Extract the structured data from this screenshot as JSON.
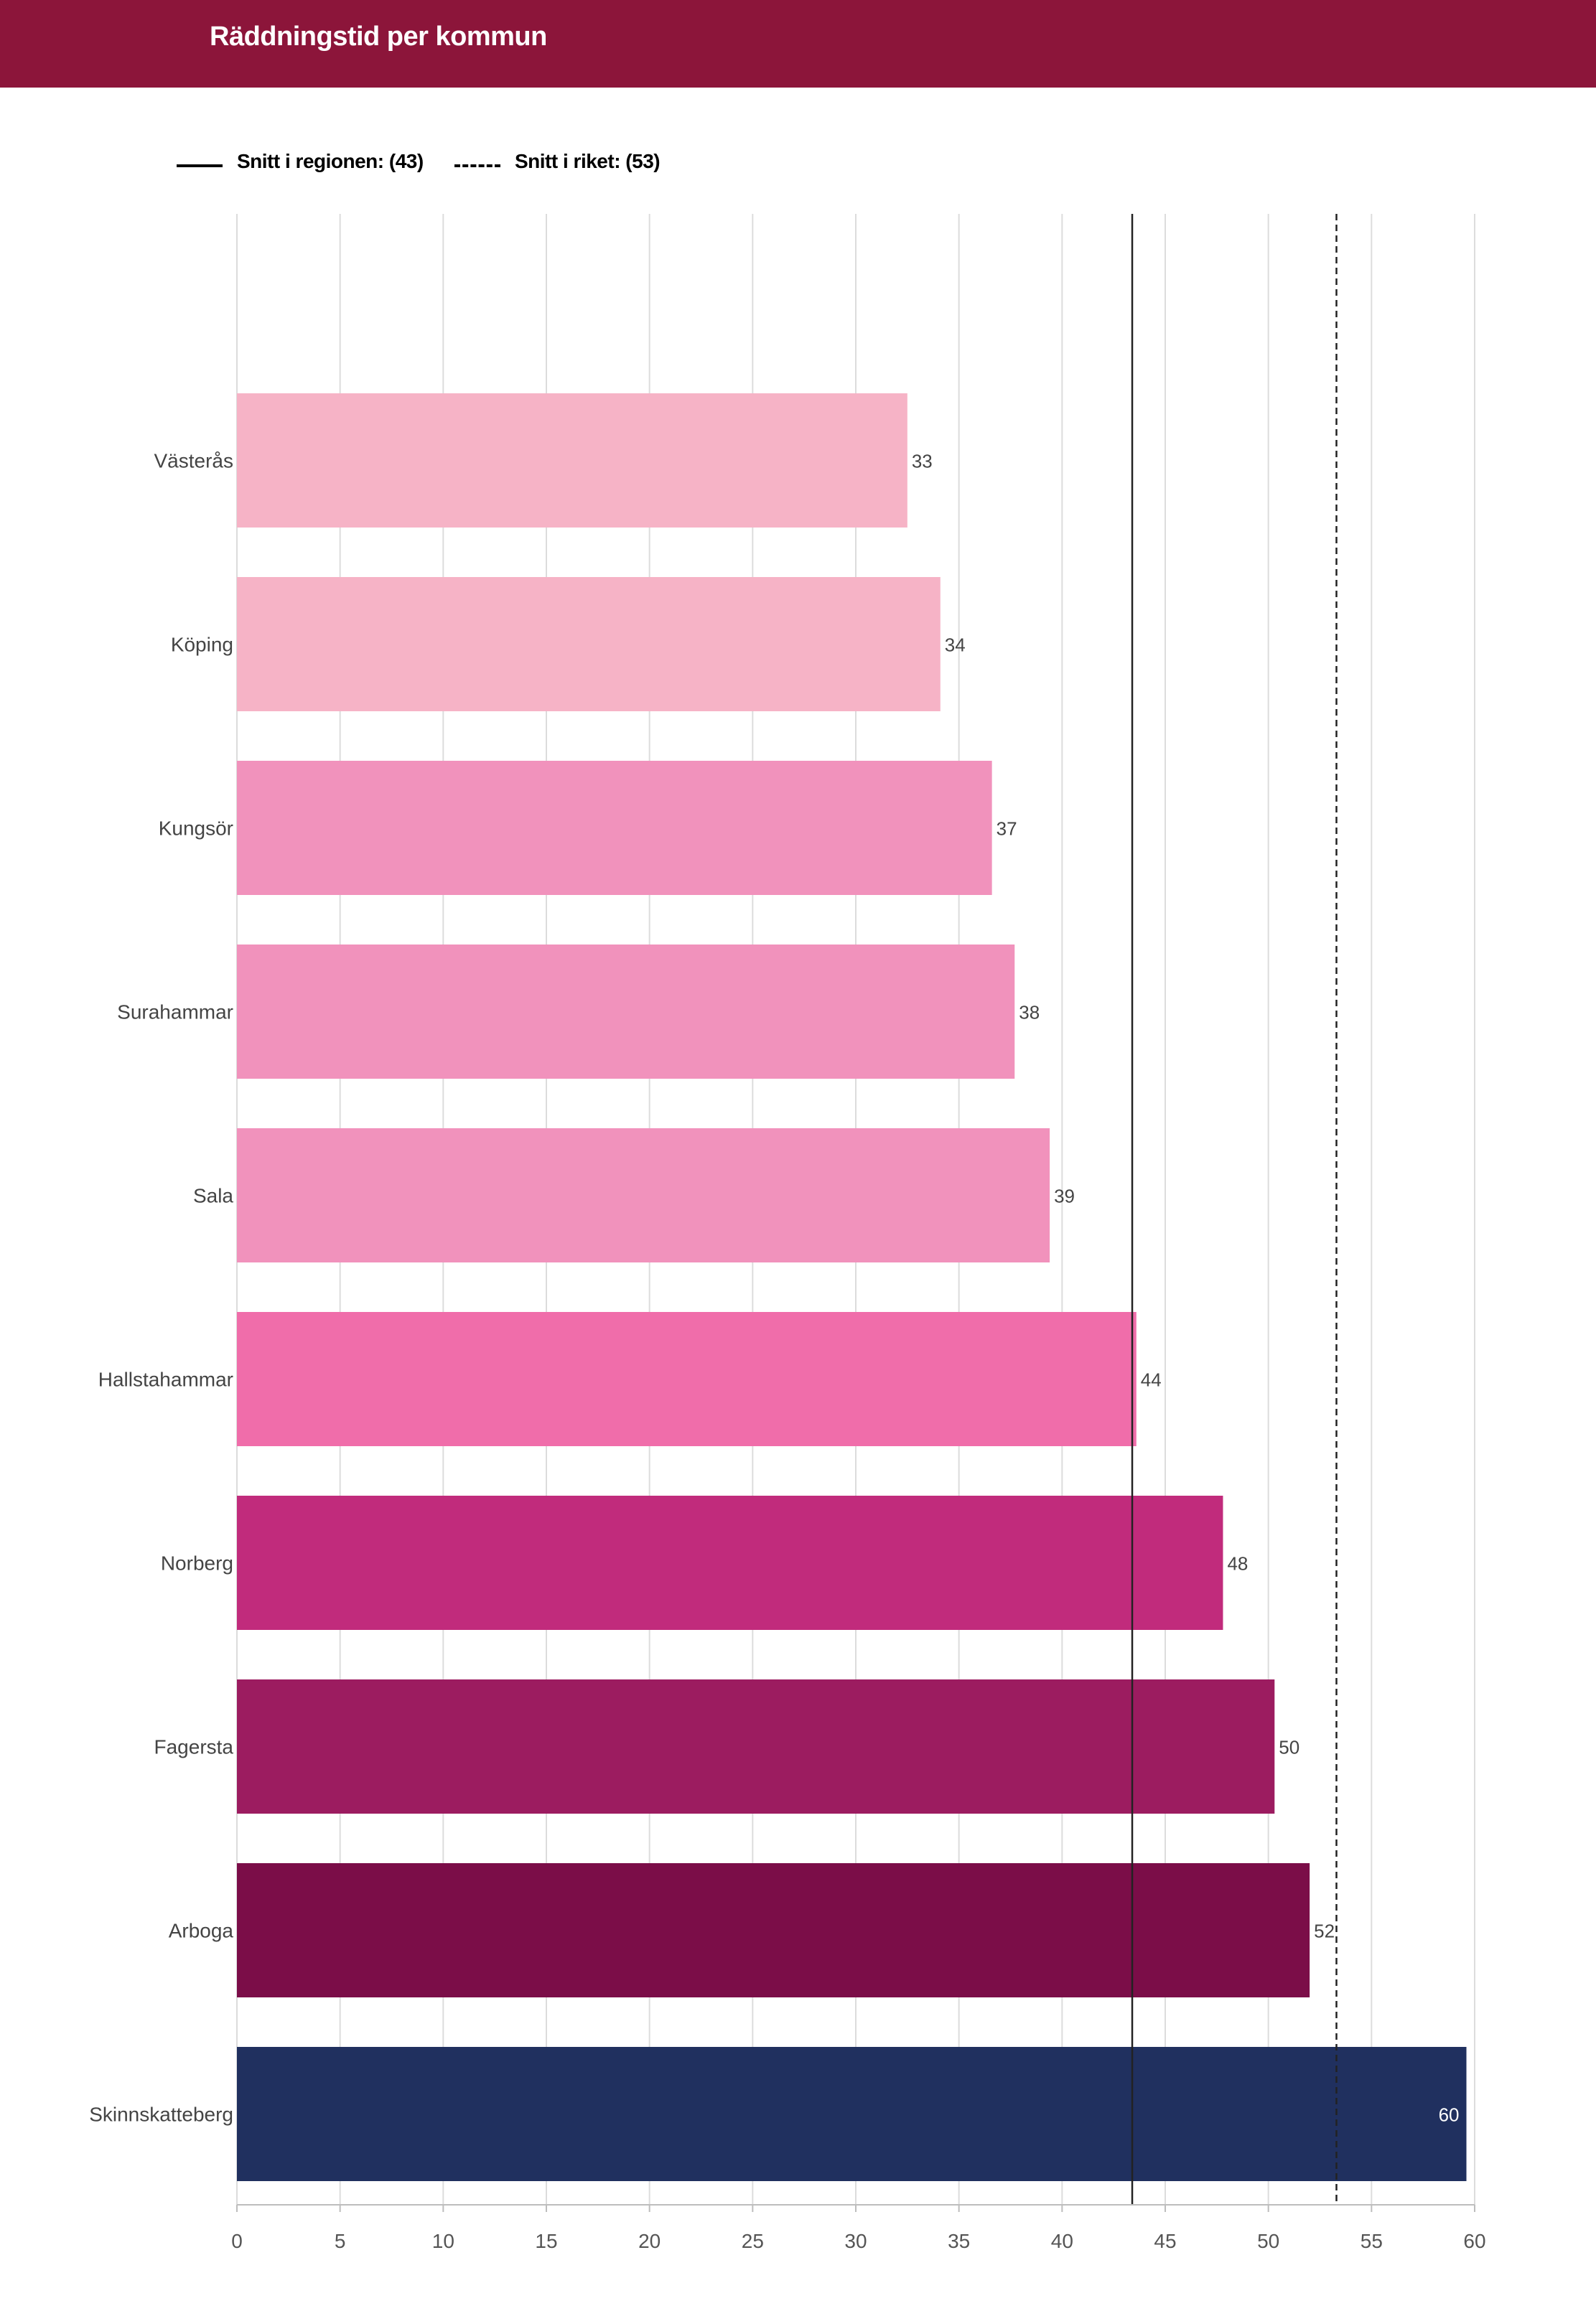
{
  "header": {
    "title": "Räddningstid per kommun"
  },
  "legend": {
    "region_label": "Snitt i regionen: (43)",
    "national_label": "Snitt i riket: (53)"
  },
  "colors": {
    "header_bg": "#8c153a",
    "light_pink": "#f6b3c6",
    "pink": "#f192bc",
    "hot_pink": "#f06daa",
    "magenta": "#c12b7c",
    "dark_magenta": "#9c1c60",
    "plum": "#7b0d48",
    "navy": "#20305f"
  },
  "chart_data": {
    "type": "bar",
    "orientation": "horizontal",
    "title": "Räddningstid per kommun",
    "categories": [
      "Västerås",
      "Köping",
      "Kungsör",
      "Surahammar",
      "Sala",
      "Hallstahammar",
      "Norberg",
      "Fagersta",
      "Arboga",
      "Skinnskatteberg"
    ],
    "values": [
      32.5,
      34.1,
      36.6,
      37.7,
      39.4,
      43.6,
      47.8,
      50.3,
      52.0,
      59.6
    ],
    "value_labels": [
      "33",
      "34",
      "37",
      "38",
      "39",
      "44",
      "48",
      "50",
      "52",
      "60"
    ],
    "bar_colors": [
      "#f6b3c6",
      "#f6b3c6",
      "#f192bc",
      "#f192bc",
      "#f192bc",
      "#f06daa",
      "#c12b7c",
      "#9c1c60",
      "#7b0d48",
      "#20305f"
    ],
    "xlim": [
      0,
      60
    ],
    "xticks": [
      0,
      5,
      10,
      15,
      20,
      25,
      30,
      35,
      40,
      45,
      50,
      55,
      60
    ],
    "grid": "vertical",
    "legend_position": "top-left",
    "reference_lines": [
      {
        "name": "Snitt i regionen: (43)",
        "value": 43.4,
        "style": "solid"
      },
      {
        "name": "Snitt i riket: (53)",
        "value": 53.3,
        "style": "dashed"
      }
    ]
  }
}
